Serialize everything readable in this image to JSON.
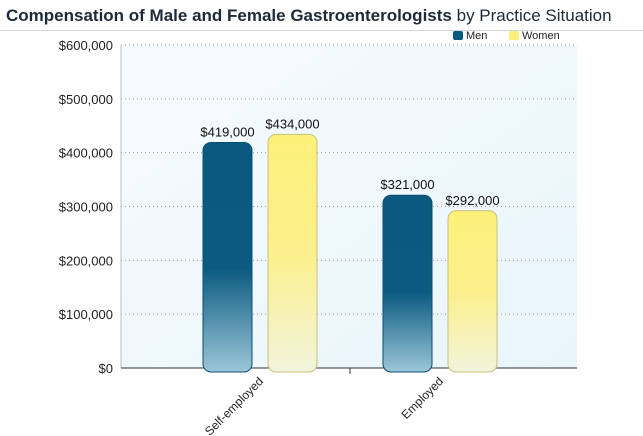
{
  "title": {
    "main": "Compensation of Male and Female Gastroenterologists",
    "suffix": "by Practice Situation"
  },
  "colors": {
    "men": "#0a5a80",
    "women": "#fdf07a"
  },
  "chart_data": {
    "type": "bar",
    "title": "Compensation of Male and Female Gastroenterologists by Practice Situation",
    "categories": [
      "Self-employed",
      "Employed"
    ],
    "series": [
      {
        "name": "Men",
        "values": [
          419000,
          321000
        ],
        "labels": [
          "$419,000",
          "$321,000"
        ]
      },
      {
        "name": "Women",
        "values": [
          434000,
          292000
        ],
        "labels": [
          "$434,000",
          "$292,000"
        ]
      }
    ],
    "ylim": [
      0,
      600000
    ],
    "yticks": [
      0,
      100000,
      200000,
      300000,
      400000,
      500000,
      600000
    ],
    "ytick_labels": [
      "$0",
      "$100,000",
      "$200,000",
      "$300,000",
      "$400,000",
      "$500,000",
      "$600,000"
    ],
    "xlabel": "",
    "ylabel": "",
    "grid": true,
    "legend_position": "top-right"
  }
}
